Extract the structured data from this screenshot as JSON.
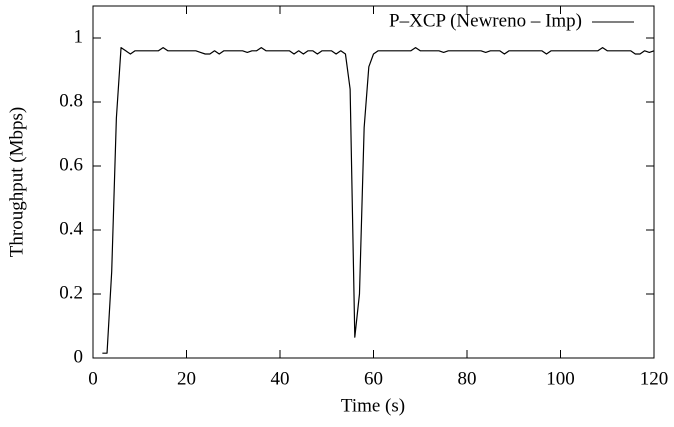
{
  "chart_data": {
    "type": "line",
    "x_label": "Time (s)",
    "y_label": "Throughput (Mbps)",
    "x": [
      2,
      3,
      4,
      5,
      6,
      7,
      8,
      9,
      10,
      11,
      12,
      13,
      14,
      15,
      16,
      17,
      18,
      19,
      20,
      21,
      22,
      23,
      24,
      25,
      26,
      27,
      28,
      29,
      30,
      31,
      32,
      33,
      34,
      35,
      36,
      37,
      38,
      39,
      40,
      41,
      42,
      43,
      44,
      45,
      46,
      47,
      48,
      49,
      50,
      51,
      52,
      53,
      54,
      55,
      56,
      57,
      58,
      59,
      60,
      61,
      62,
      63,
      64,
      65,
      66,
      67,
      68,
      69,
      70,
      71,
      72,
      73,
      74,
      75,
      76,
      77,
      78,
      79,
      80,
      81,
      82,
      83,
      84,
      85,
      86,
      87,
      88,
      89,
      90,
      91,
      92,
      93,
      94,
      95,
      96,
      97,
      98,
      99,
      100,
      101,
      102,
      103,
      104,
      105,
      106,
      107,
      108,
      109,
      110,
      111,
      112,
      113,
      114,
      115,
      116,
      117,
      118,
      119,
      120
    ],
    "series": [
      {
        "name": "P–XCP (Newreno – Imp)",
        "color": "#000000",
        "values": [
          0.015,
          0.015,
          0.27,
          0.75,
          0.97,
          0.96,
          0.95,
          0.96,
          0.96,
          0.96,
          0.96,
          0.96,
          0.96,
          0.97,
          0.96,
          0.96,
          0.96,
          0.96,
          0.96,
          0.96,
          0.96,
          0.955,
          0.95,
          0.95,
          0.96,
          0.95,
          0.96,
          0.96,
          0.96,
          0.96,
          0.96,
          0.955,
          0.96,
          0.96,
          0.97,
          0.96,
          0.96,
          0.96,
          0.96,
          0.96,
          0.96,
          0.95,
          0.96,
          0.95,
          0.96,
          0.96,
          0.95,
          0.96,
          0.96,
          0.96,
          0.95,
          0.96,
          0.95,
          0.84,
          0.065,
          0.2,
          0.72,
          0.91,
          0.95,
          0.96,
          0.96,
          0.96,
          0.96,
          0.96,
          0.96,
          0.96,
          0.96,
          0.97,
          0.96,
          0.96,
          0.96,
          0.96,
          0.96,
          0.955,
          0.96,
          0.96,
          0.96,
          0.96,
          0.96,
          0.96,
          0.96,
          0.96,
          0.955,
          0.96,
          0.96,
          0.96,
          0.95,
          0.96,
          0.96,
          0.96,
          0.96,
          0.96,
          0.96,
          0.96,
          0.96,
          0.95,
          0.96,
          0.96,
          0.96,
          0.96,
          0.96,
          0.96,
          0.96,
          0.96,
          0.96,
          0.96,
          0.96,
          0.97,
          0.96,
          0.96,
          0.96,
          0.96,
          0.96,
          0.96,
          0.95,
          0.95,
          0.96,
          0.955,
          0.96
        ]
      }
    ],
    "xlim": [
      0,
      120
    ],
    "xticks": [
      0,
      20,
      40,
      60,
      80,
      100,
      120
    ],
    "ylim": [
      0,
      1.1
    ],
    "yticks": [
      0,
      0.2,
      0.4,
      0.6,
      0.8,
      1
    ],
    "legend": "top-right"
  }
}
